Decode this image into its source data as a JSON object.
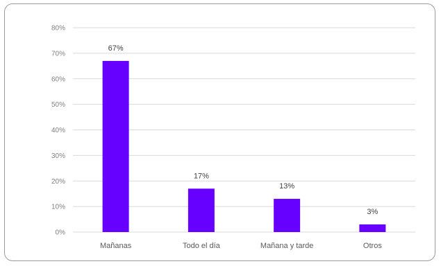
{
  "chart_data": {
    "type": "bar",
    "categories": [
      "Mañanas",
      "Todo el día",
      "Mañana y tarde",
      "Otros"
    ],
    "values": [
      67,
      17,
      13,
      3
    ],
    "data_labels": [
      "67%",
      "17%",
      "13%",
      "3%"
    ],
    "ylim": [
      0,
      80
    ],
    "yticks": [
      0,
      10,
      20,
      30,
      40,
      50,
      60,
      70,
      80
    ],
    "ytick_labels": [
      "0%",
      "10%",
      "20%",
      "30%",
      "40%",
      "50%",
      "60%",
      "70%",
      "80%"
    ],
    "grid": true,
    "bar_color": "#6600FF",
    "title": "",
    "xlabel": "",
    "ylabel": ""
  }
}
